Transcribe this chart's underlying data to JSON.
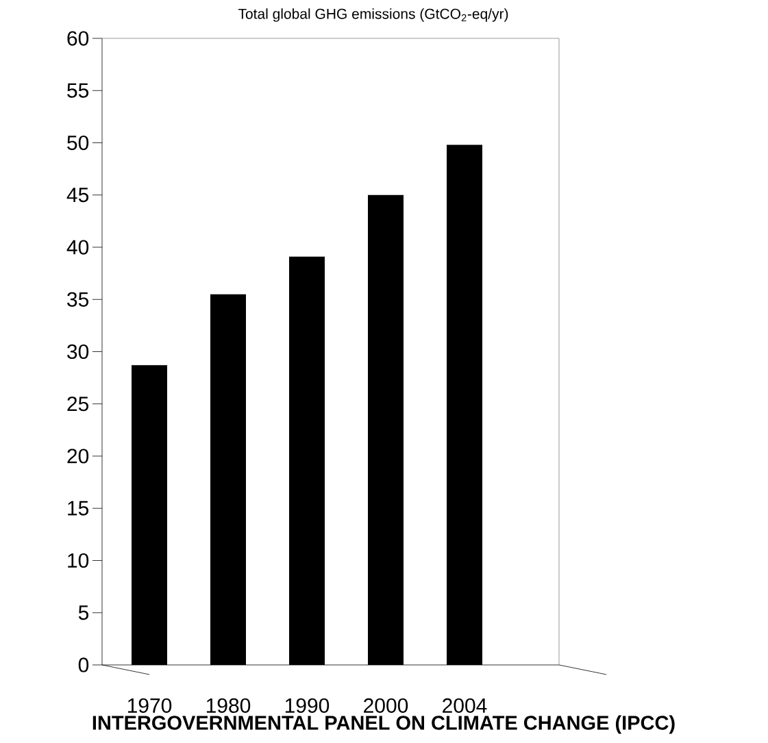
{
  "chart_data": {
    "type": "bar",
    "title": "Total global GHG emissions (GtCO$_{2}$-eq/yr)",
    "categories": [
      "1970",
      "1980",
      "1990",
      "2000",
      "2004"
    ],
    "values": [
      28.7,
      35.5,
      39.1,
      45.0,
      49.8
    ],
    "color": "#000000",
    "ylim": [
      0,
      60
    ],
    "yticks": [
      0,
      5,
      10,
      15,
      20,
      25,
      30,
      35,
      40,
      45,
      50,
      55,
      60
    ],
    "annotations": [
      "INTERGOVERNMENTAL PANEL ON CLIMATE CHANGE (IPCC)"
    ]
  }
}
